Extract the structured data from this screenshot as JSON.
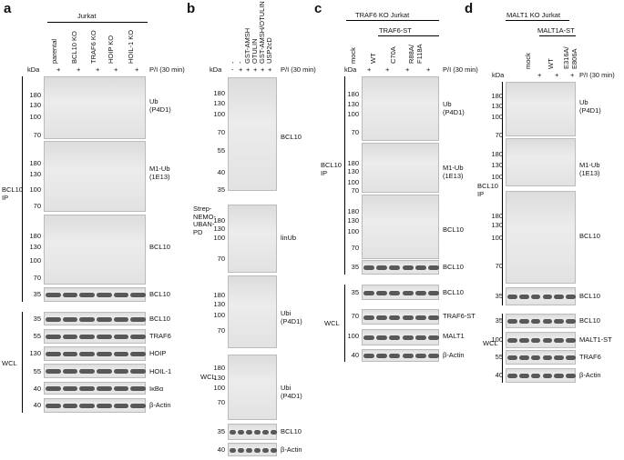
{
  "panels": [
    {
      "letter": "a",
      "headers": [
        "Jurkat"
      ],
      "kda": "kDa",
      "stimulus": "P/I (30 min)",
      "lanes": [
        "parental",
        "BCL10 KO",
        "TRAF6 KO",
        "HOIP KO",
        "HOIL-1 KO"
      ],
      "treatments": [
        "+",
        "+",
        "+",
        "+",
        "+"
      ],
      "groups": [
        {
          "label": "BCL10\nIP",
          "blots": [
            {
              "label": "Ub\n(P4D1)",
              "markers": [
                180,
                130,
                100,
                70
              ]
            },
            {
              "label": "M1-Ub\n(1E13)",
              "markers": [
                180,
                130,
                100,
                70
              ]
            },
            {
              "label": "BCL10",
              "markers": [
                180,
                130,
                100,
                70
              ]
            },
            {
              "label": "BCL10",
              "markers": [
                35
              ]
            }
          ]
        },
        {
          "label": "WCL",
          "blots": [
            {
              "label": "BCL10",
              "markers": [
                35
              ]
            },
            {
              "label": "TRAF6",
              "markers": [
                55
              ]
            },
            {
              "label": "HOIP",
              "markers": [
                130
              ]
            },
            {
              "label": "HOIL-1",
              "markers": [
                55
              ]
            },
            {
              "label": "IκBα",
              "markers": [
                40
              ]
            },
            {
              "label": "β-Actin",
              "markers": [
                40
              ]
            }
          ]
        }
      ]
    },
    {
      "letter": "b",
      "headers": [],
      "kda": "kDa",
      "stimulus": "P/I (30 min)",
      "lanes": [
        "-",
        "-",
        "GST-AMSH",
        "OTULIN",
        "GST-AMSH/OTULIN",
        "USP2cD"
      ],
      "treatments": [
        "-",
        "+",
        "+",
        "+",
        "+",
        "+"
      ],
      "groups": [
        {
          "label": "Strep-\nNEMO-\nUBAN-\nPD",
          "blots": [
            {
              "label": "BCL10",
              "markers": [
                180,
                130,
                100,
                70,
                55,
                40,
                35
              ]
            },
            {
              "label": "linUb",
              "markers": [
                180,
                130,
                100,
                70
              ]
            },
            {
              "label": "Ubi (P4D1)",
              "markers": [
                180,
                130,
                100,
                70
              ]
            }
          ]
        },
        {
          "label": "WCL",
          "blots": [
            {
              "label": "Ubi (P4D1)",
              "markers": [
                180,
                130,
                100,
                70
              ]
            },
            {
              "label": "BCL10",
              "markers": [
                35
              ]
            },
            {
              "label": "β-Actin",
              "markers": [
                40
              ]
            }
          ]
        }
      ]
    },
    {
      "letter": "c",
      "headers": [
        "TRAF6 KO Jurkat",
        "TRAF6-ST"
      ],
      "kda": "kDa",
      "stimulus": "P/I (30 min)",
      "lanes": [
        "mock",
        "WT",
        "C70A",
        "R88A/\nF118A"
      ],
      "treatments": [
        "+",
        "+",
        "+",
        "+"
      ],
      "groups": [
        {
          "label": "BCL10\nIP",
          "blots": [
            {
              "label": "Ub\n(P4D1)",
              "markers": [
                180,
                130,
                100,
                70
              ]
            },
            {
              "label": "M1-Ub\n(1E13)",
              "markers": [
                180,
                130,
                100,
                70
              ]
            },
            {
              "label": "BCL10",
              "markers": [
                180,
                130,
                100,
                70
              ]
            },
            {
              "label": "BCL10",
              "markers": [
                35
              ]
            }
          ]
        },
        {
          "label": "WCL",
          "blots": [
            {
              "label": "BCL10",
              "markers": [
                35
              ]
            },
            {
              "label": "TRAF6-ST",
              "markers": [
                70
              ]
            },
            {
              "label": "MALT1",
              "markers": [
                100
              ]
            },
            {
              "label": "β-Actin",
              "markers": [
                40
              ]
            }
          ]
        }
      ]
    },
    {
      "letter": "d",
      "headers": [
        "MALT1 KO Jurkat",
        "MALT1A-ST"
      ],
      "kda": "kDa",
      "stimulus": "P/I (30 min)",
      "lanes": [
        "mock",
        "WT",
        "E316A/\nE806A"
      ],
      "treatments": [
        "+",
        "+",
        "+"
      ],
      "groups": [
        {
          "label": "BCL10\nIP",
          "blots": [
            {
              "label": "Ub\n(P4D1)",
              "markers": [
                180,
                130,
                100,
                70
              ]
            },
            {
              "label": "M1-Ub\n(1E13)",
              "markers": [
                180,
                130,
                100
              ]
            },
            {
              "label": "BCL10",
              "markers": [
                180,
                130,
                100,
                70
              ]
            },
            {
              "label": "BCL10",
              "markers": [
                35
              ]
            }
          ]
        },
        {
          "label": "WCL",
          "blots": [
            {
              "label": "BCL10",
              "markers": [
                35
              ]
            },
            {
              "label": "MALT1-ST",
              "markers": [
                100
              ]
            },
            {
              "label": "TRAF6",
              "markers": [
                55
              ]
            },
            {
              "label": "β-Actin",
              "markers": [
                40
              ]
            }
          ]
        }
      ]
    }
  ]
}
